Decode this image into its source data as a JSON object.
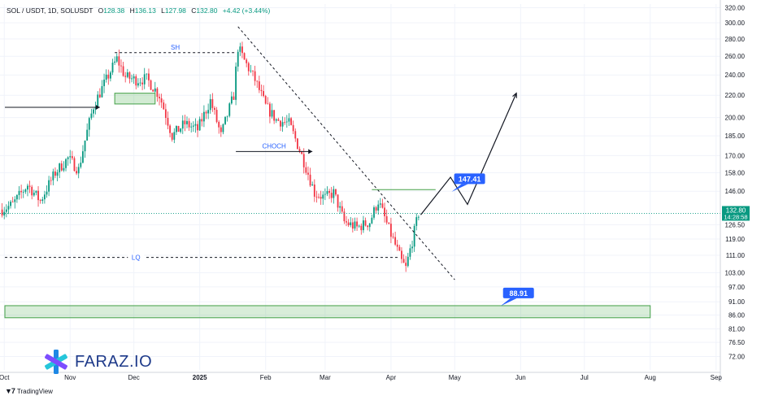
{
  "header": {
    "symbol": "SOL / USDT, 1D, SOLUSDT",
    "o_label": "O",
    "o_value": "128.38",
    "h_label": "H",
    "h_value": "136.13",
    "l_label": "L",
    "l_value": "127.98",
    "c_label": "C",
    "c_value": "132.80",
    "change": "+4.42 (+3.44%)"
  },
  "brand": {
    "name": "FARAZ.IO",
    "platform": "TradingView"
  },
  "current_price": {
    "value": "132.80",
    "countdown": "14:28:58"
  },
  "colors": {
    "up": "#089981",
    "down": "#f23645",
    "accent": "#2962ff",
    "zone": "#a5d6a7"
  },
  "chart_data": {
    "type": "candlestick",
    "y_scale": "log",
    "ylim": [
      68,
      325
    ],
    "y_ticks": [
      "320.00",
      "300.00",
      "280.00",
      "260.00",
      "240.00",
      "220.00",
      "200.00",
      "185.00",
      "170.00",
      "158.00",
      "146.00",
      "126.50",
      "119.00",
      "111.00",
      "103.00",
      "97.00",
      "91.00",
      "86.00",
      "81.00",
      "76.50",
      "72.00"
    ],
    "x_ticks": [
      "Oct",
      "Nov",
      "Dec",
      "2025",
      "Feb",
      "Mar",
      "Apr",
      "May",
      "Jun",
      "Jul",
      "Aug",
      "Sep"
    ],
    "xlim": [
      "2024-09-29",
      "2025-09-03"
    ],
    "anchors": [
      [
        "2024-09-30",
        135
      ],
      [
        "2024-10-05",
        138
      ],
      [
        "2024-10-12",
        150
      ],
      [
        "2024-10-18",
        140
      ],
      [
        "2024-10-25",
        158
      ],
      [
        "2024-10-31",
        168
      ],
      [
        "2024-11-05",
        160
      ],
      [
        "2024-11-12",
        210
      ],
      [
        "2024-11-18",
        235
      ],
      [
        "2024-11-23",
        257
      ],
      [
        "2024-11-27",
        238
      ],
      [
        "2024-12-02",
        235
      ],
      [
        "2024-12-07",
        236
      ],
      [
        "2024-12-13",
        220
      ],
      [
        "2024-12-19",
        185
      ],
      [
        "2024-12-25",
        195
      ],
      [
        "2024-12-31",
        190
      ],
      [
        "2025-01-06",
        215
      ],
      [
        "2025-01-11",
        185
      ],
      [
        "2025-01-17",
        220
      ],
      [
        "2025-01-19",
        270
      ],
      [
        "2025-01-22",
        255
      ],
      [
        "2025-01-27",
        235
      ],
      [
        "2025-02-01",
        210
      ],
      [
        "2025-02-06",
        198
      ],
      [
        "2025-02-12",
        195
      ],
      [
        "2025-02-18",
        170
      ],
      [
        "2025-02-24",
        145
      ],
      [
        "2025-03-01",
        142
      ],
      [
        "2025-03-05",
        145
      ],
      [
        "2025-03-10",
        128
      ],
      [
        "2025-03-16",
        125
      ],
      [
        "2025-03-22",
        128
      ],
      [
        "2025-03-26",
        140
      ],
      [
        "2025-03-31",
        124
      ],
      [
        "2025-04-06",
        108
      ],
      [
        "2025-04-08",
        105
      ],
      [
        "2025-04-11",
        118
      ],
      [
        "2025-04-14",
        132.8
      ]
    ],
    "annotations": {
      "swing_high": {
        "label": "SH",
        "price": 264,
        "from": "2024-11-22",
        "to": "2025-01-18"
      },
      "choch": {
        "label": "CHOCH",
        "price": 173,
        "from": "2025-01-18",
        "to": "2025-02-23"
      },
      "liquidity": {
        "label": "LQ",
        "price": 110,
        "from": "2024-09-29",
        "to": "2025-04-05"
      },
      "demand_zone_small": {
        "from": "2024-11-22",
        "to": "2024-12-11",
        "low": 212,
        "high": 222
      },
      "demand_zone_large": {
        "from": "2024-09-29",
        "to": "2025-08-01",
        "low": 85,
        "high": 89.5
      },
      "supply_line": {
        "price": 147,
        "from": "2025-03-23",
        "to": "2025-04-22"
      },
      "trendline": {
        "from": [
          "2025-01-19",
          295
        ],
        "to": [
          "2025-05-01",
          100
        ]
      },
      "forecast_path": [
        [
          "2025-04-15",
          132
        ],
        [
          "2025-04-29",
          155
        ],
        [
          "2025-05-07",
          138
        ],
        [
          "2025-05-30",
          222
        ]
      ],
      "target_up": {
        "label": "147.41",
        "date": "2025-05-08",
        "price": 154
      },
      "target_down": {
        "label": "88.91",
        "date": "2025-05-31",
        "price": 94.5
      },
      "big_arrow": {
        "from": [
          "2024-09-29",
          209
        ],
        "to": [
          "2024-11-15",
          209
        ]
      }
    }
  }
}
